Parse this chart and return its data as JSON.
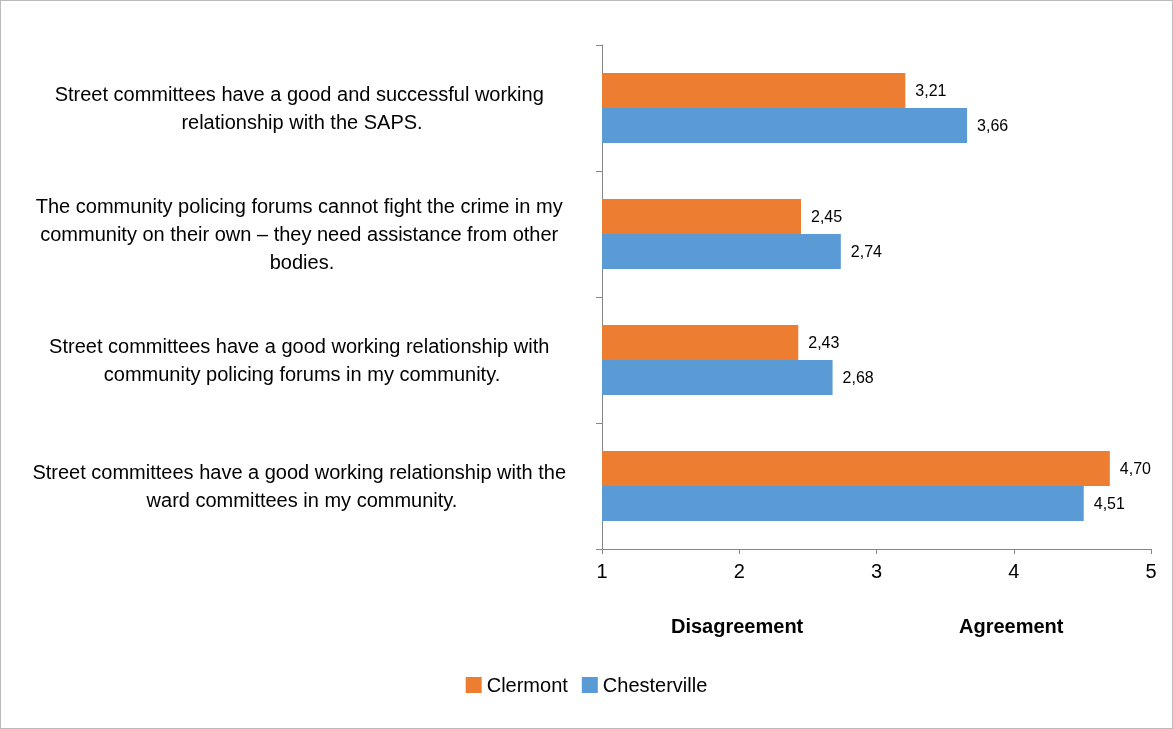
{
  "chart_data": {
    "type": "bar",
    "orientation": "horizontal",
    "categories": [
      "Street committees have a good and successful working relationship with the SAPS.",
      "The community policing forums cannot fight the crime in my community on their own – they need assistance from other bodies.",
      "Street committees have a good working relationship with community policing forums in my community.",
      "Street committees have a good working relationship with the ward committees in my community."
    ],
    "series": [
      {
        "name": "Clermont",
        "color": "#ed7d31",
        "values": [
          3.21,
          2.45,
          2.43,
          4.7
        ],
        "value_labels": [
          "3,21",
          "2,45",
          "2,43",
          "4,70"
        ]
      },
      {
        "name": "Chesterville",
        "color": "#5b9bd5",
        "values": [
          3.66,
          2.74,
          2.68,
          4.51
        ],
        "value_labels": [
          "3,66",
          "2,74",
          "2,68",
          "4,51"
        ]
      }
    ],
    "xlim": [
      1,
      5
    ],
    "xticks": [
      1,
      2,
      3,
      4,
      5
    ],
    "annotations": [
      "Disagreement",
      "Agreement"
    ],
    "grid": false,
    "legend": "bottom"
  }
}
